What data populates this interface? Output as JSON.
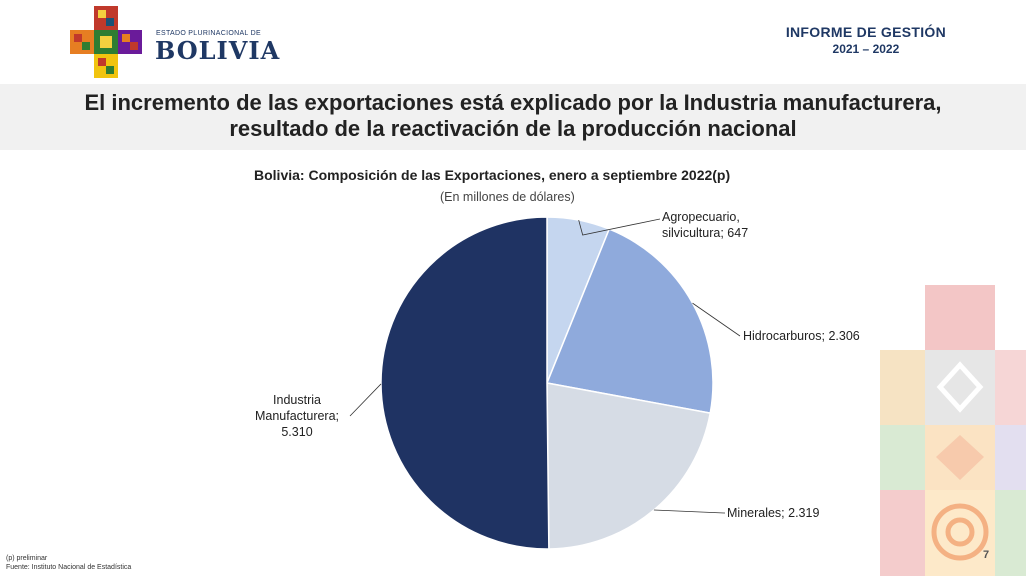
{
  "header": {
    "brand_small": "ESTADO PLURINACIONAL DE",
    "brand_big": "BOLIVIA",
    "report_title": "INFORME DE GESTIÓN",
    "report_years": "2021 – 2022"
  },
  "headline": {
    "line1": "El incremento de las exportaciones está explicado por la Industria manufacturera,",
    "line2": "resultado de la reactivación de la producción nacional"
  },
  "chart_data": {
    "type": "pie",
    "title": "Bolivia: Composición de las Exportaciones, enero a septiembre 2022(p)",
    "subtitle": "(En millones de dólares)",
    "slices": [
      {
        "name": "Agropecuario, silvicultura",
        "value": 647,
        "label_lines": [
          "Agropecuario,",
          "silvicultura; 647"
        ],
        "color": "#c5d6ef"
      },
      {
        "name": "Hidrocarburos",
        "value": 2306,
        "label_lines": [
          "Hidrocarburos; 2.306"
        ],
        "color": "#8faadc"
      },
      {
        "name": "Minerales",
        "value": 2319,
        "label_lines": [
          "Minerales; 2.319"
        ],
        "color": "#d6dce5"
      },
      {
        "name": "Industria Manufacturera",
        "value": 5310,
        "label_lines": [
          "Industria",
          "Manufacturera;",
          "5.310"
        ],
        "color": "#1f3363"
      }
    ]
  },
  "footer": {
    "note": "(p) preliminar",
    "source": "Fuente: Instituto Nacional de Estadística",
    "page": "7"
  },
  "colors": {
    "brand_navy": "#1f3864",
    "band": "#f1f1f1"
  }
}
